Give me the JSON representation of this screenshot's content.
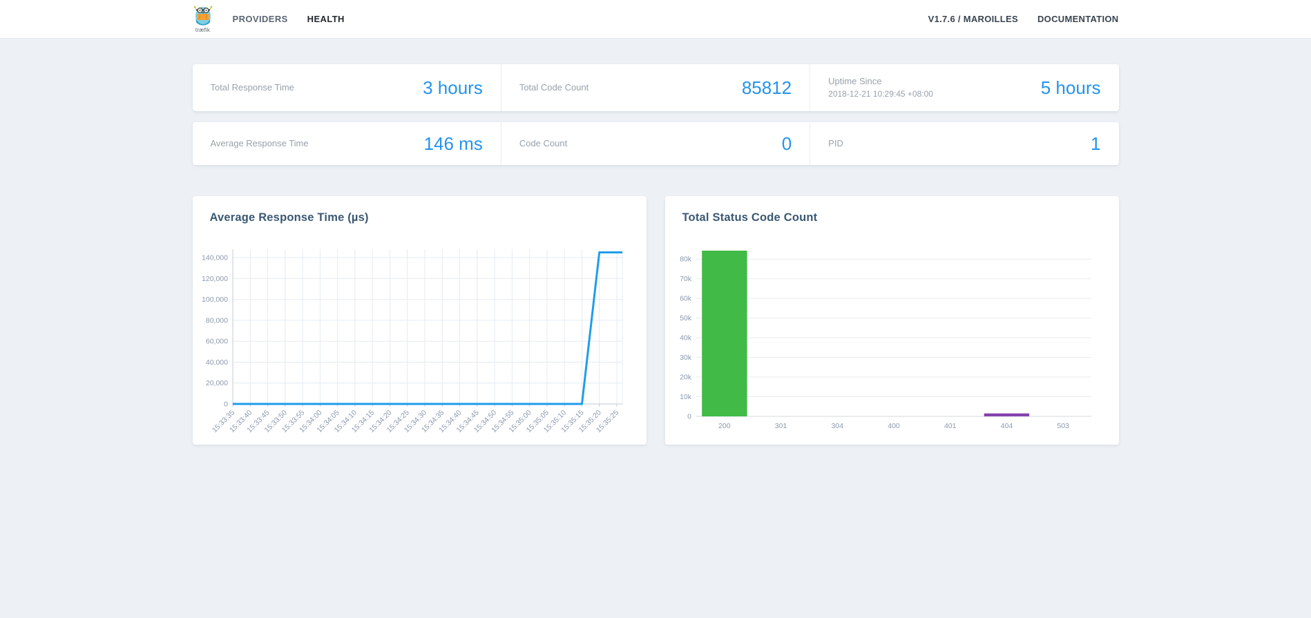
{
  "navbar": {
    "logo_text": "træfik",
    "items": [
      {
        "label": "PROVIDERS",
        "active": false
      },
      {
        "label": "HEALTH",
        "active": true
      }
    ],
    "version_label": "V1.7.6 / MAROILLES",
    "documentation_label": "DOCUMENTATION"
  },
  "stats": {
    "rows": [
      [
        {
          "label": "Total Response Time",
          "value": "3 hours"
        },
        {
          "label": "Total Code Count",
          "value": "85812"
        },
        {
          "label": "Uptime Since",
          "sublabel": "2018-12-21 10:29:45 +08:00",
          "value": "5 hours"
        }
      ],
      [
        {
          "label": "Average Response Time",
          "value": "146 ms"
        },
        {
          "label": "Code Count",
          "value": "0"
        },
        {
          "label": "PID",
          "value": "1"
        }
      ]
    ]
  },
  "colors": {
    "accent_blue": "#2493eb",
    "line_blue": "#1e9ceb",
    "bar_green": "#41ba47",
    "bar_purple": "#8442ad",
    "title_navy": "#3a5873"
  },
  "chart_data": [
    {
      "type": "line",
      "title": "Average Response Time (µs)",
      "x": [
        "15:33:35",
        "15:33:40",
        "15:33:45",
        "15:33:50",
        "15:33:55",
        "15:34:00",
        "15:34:05",
        "15:34:10",
        "15:34:15",
        "15:34:20",
        "15:34:25",
        "15:34:30",
        "15:34:35",
        "15:34:40",
        "15:34:45",
        "15:34:50",
        "15:34:55",
        "15:35:00",
        "15:35:05",
        "15:35:10",
        "15:35:15",
        "15:35:20",
        "15:35:25"
      ],
      "values": [
        0,
        0,
        0,
        0,
        0,
        0,
        0,
        0,
        0,
        0,
        0,
        0,
        0,
        0,
        0,
        0,
        0,
        0,
        0,
        0,
        0,
        145000,
        145000
      ],
      "ylim": [
        0,
        148000
      ],
      "yticks": [
        0,
        20000,
        40000,
        60000,
        80000,
        100000,
        120000,
        140000
      ],
      "ytick_labels": [
        "0",
        "20,000",
        "40,000",
        "60,000",
        "80,000",
        "100,000",
        "120,000",
        "140,000"
      ],
      "line_color": "#1e9ceb",
      "grid": "both",
      "legend": "none"
    },
    {
      "type": "bar",
      "title": "Total Status Code Count",
      "categories": [
        "200",
        "301",
        "304",
        "400",
        "401",
        "404",
        "503"
      ],
      "values": [
        84300,
        0,
        0,
        0,
        0,
        1500,
        0
      ],
      "colors": [
        "#41ba47",
        "#41ba47",
        "#41ba47",
        "#41ba47",
        "#41ba47",
        "#8442ad",
        "#41ba47"
      ],
      "ylim": [
        0,
        85000
      ],
      "yticks": [
        0,
        10000,
        20000,
        30000,
        40000,
        50000,
        60000,
        70000,
        80000
      ],
      "ytick_labels": [
        "0",
        "10k",
        "20k",
        "30k",
        "40k",
        "50k",
        "60k",
        "70k",
        "80k"
      ],
      "grid": "horizontal",
      "legend": "none"
    }
  ]
}
